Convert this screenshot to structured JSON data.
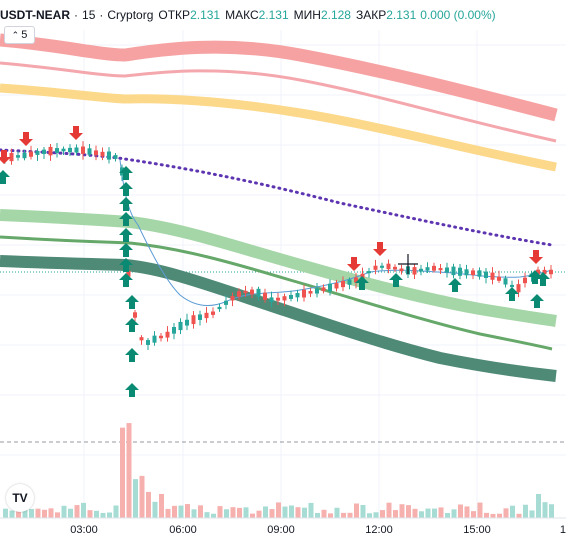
{
  "legend": {
    "symbol": "USDT-NEAR",
    "interval": "15",
    "exchange": "Cryptorg",
    "open_label": "ОТКР",
    "open_value": "2.131",
    "high_label": "МАКС",
    "high_value": "2.131",
    "low_label": "МИН",
    "low_value": "2.128",
    "close_label": "ЗАКР",
    "close_value": "2.131",
    "change": "0.000 (0.00%)"
  },
  "indicator_toggle": {
    "count": "5"
  },
  "time_axis": {
    "labels": [
      "03:00",
      "06:00",
      "09:00",
      "12:00",
      "15:00",
      "1"
    ]
  },
  "logo": {
    "text": "TV"
  },
  "colors": {
    "up": "#26a69a",
    "down": "#ef5350",
    "buy_arrow": "#0b8a73",
    "sell_arrow": "#e53935",
    "dotted": "#5e35b1",
    "thin_blue": "#5b9bd5"
  }
}
